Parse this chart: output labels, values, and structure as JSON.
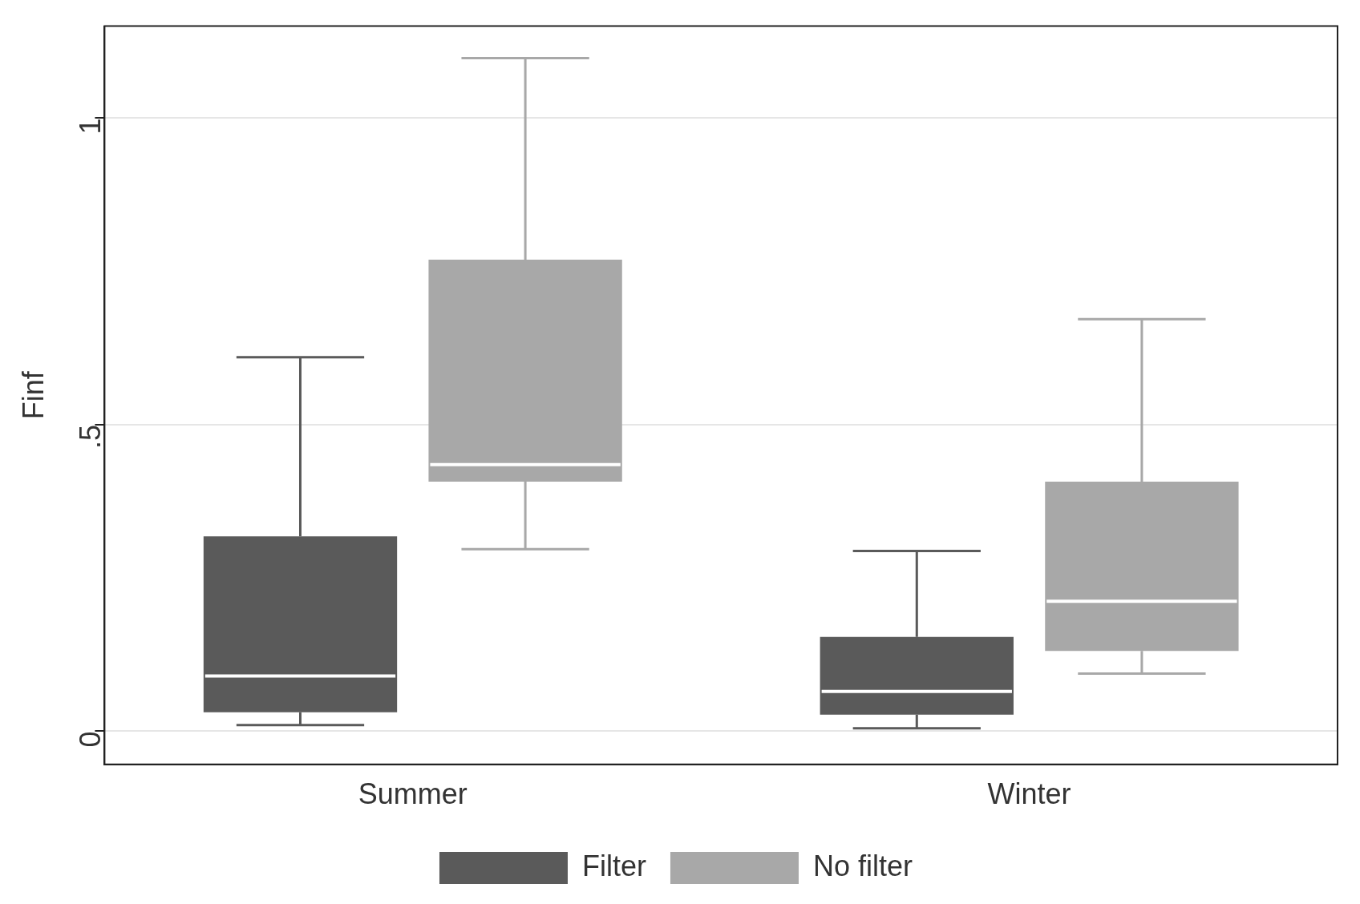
{
  "chart_data": {
    "type": "box",
    "ylabel": "Finf",
    "categories": [
      "Summer",
      "Winter"
    ],
    "series": [
      {
        "name": "Filter",
        "color": "#5a5a5a",
        "boxes": [
          {
            "low": 0.01,
            "q1": 0.031,
            "median": 0.09,
            "q3": 0.318,
            "high": 0.61
          },
          {
            "low": 0.005,
            "q1": 0.027,
            "median": 0.065,
            "q3": 0.154,
            "high": 0.294
          }
        ]
      },
      {
        "name": "No filter",
        "color": "#a8a8a8",
        "boxes": [
          {
            "low": 0.297,
            "q1": 0.407,
            "median": 0.435,
            "q3": 0.769,
            "high": 1.098
          },
          {
            "low": 0.094,
            "q1": 0.131,
            "median": 0.212,
            "q3": 0.407,
            "high": 0.672
          }
        ]
      }
    ],
    "ylim": [
      -0.054,
      1.15
    ],
    "yticks": [
      0,
      {
        "value": 0.5,
        "label": ".5"
      },
      1
    ],
    "grid": "y",
    "legend": "bottom"
  }
}
